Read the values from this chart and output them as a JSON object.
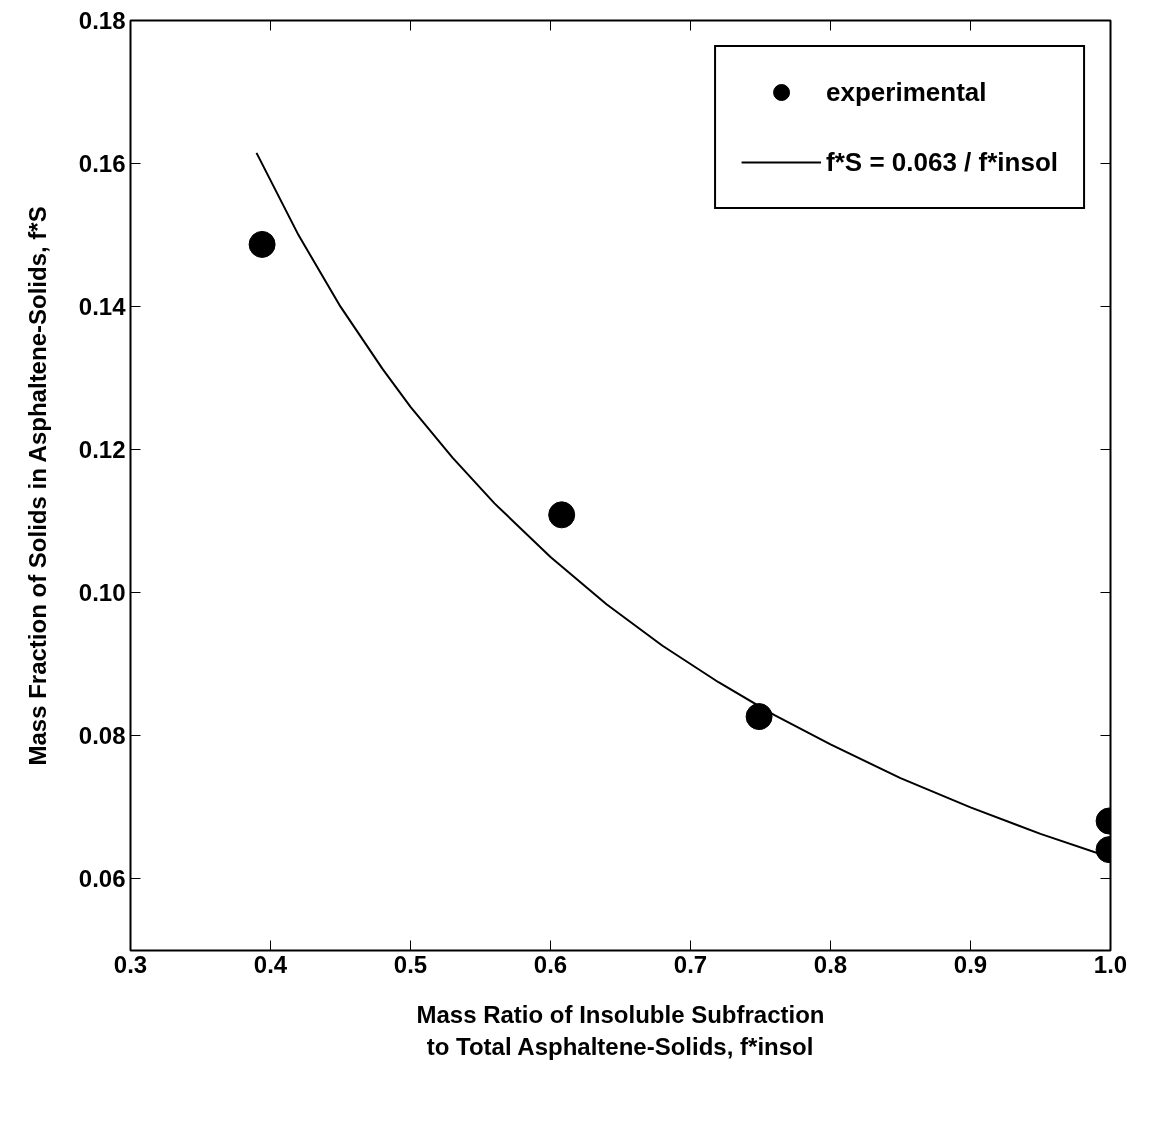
{
  "chart_data": {
    "type": "scatter",
    "xlabel": "Mass Ratio of Insoluble Subfraction\nto Total Asphaltene-Solids, f*insol",
    "ylabel": "Mass Fraction of Solids in Asphaltene-Solids, f*S",
    "series": [
      {
        "name": "experimental",
        "marker": "circle",
        "color": "#000000",
        "x": [
          0.394,
          0.608,
          0.749,
          0.999,
          0.999
        ],
        "values": [
          0.1487,
          0.1109,
          0.0827,
          0.0681,
          0.0641
        ]
      },
      {
        "name": "f*S = 0.063 / f*insol",
        "type": "line",
        "marker": "none",
        "line_style": "solid",
        "color": "#000000",
        "x": [
          0.39,
          0.42,
          0.45,
          0.48,
          0.5,
          0.53,
          0.56,
          0.6,
          0.64,
          0.68,
          0.72,
          0.76,
          0.8,
          0.85,
          0.9,
          0.95,
          1.0
        ],
        "values": [
          0.1615,
          0.15,
          0.14,
          0.1313,
          0.126,
          0.1189,
          0.1125,
          0.105,
          0.0984,
          0.0926,
          0.0875,
          0.0829,
          0.0788,
          0.0741,
          0.07,
          0.0663,
          0.063
        ]
      }
    ],
    "xlim": [
      0.3,
      1.0
    ],
    "xticks": [
      0.3,
      0.4,
      0.5,
      0.6,
      0.7,
      0.8,
      0.9,
      {
        "value": 1.0,
        "label": "1.0"
      }
    ],
    "ylim": [
      0.05,
      0.18
    ],
    "yticks": [
      0.06,
      0.08,
      {
        "value": 0.1,
        "label": "0.10"
      },
      0.12,
      0.14,
      0.16,
      0.18
    ],
    "grid": false,
    "legend": "top right"
  }
}
